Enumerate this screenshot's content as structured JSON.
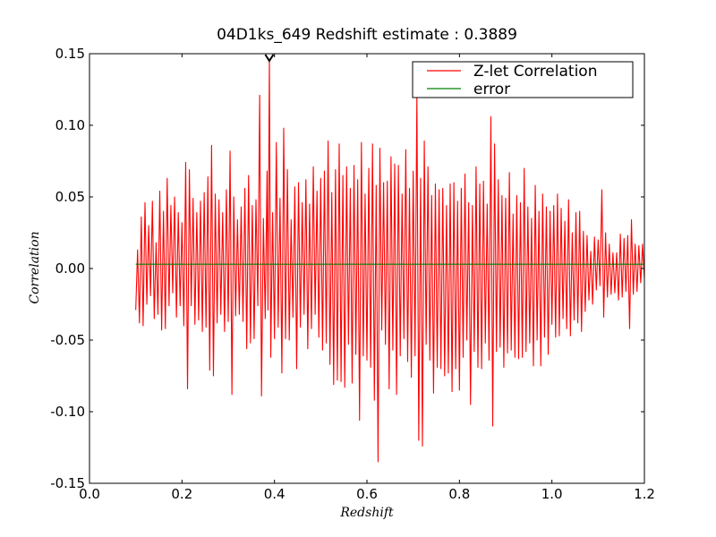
{
  "chart_data": {
    "type": "line",
    "title": "04D1ks_649 Redshift estimate : 0.3889",
    "xlabel": "Redshift",
    "ylabel": "Correlation",
    "xlim": [
      0.0,
      1.2
    ],
    "ylim": [
      -0.15,
      0.15
    ],
    "xticks": [
      0.0,
      0.2,
      0.4,
      0.6,
      0.8,
      1.0,
      1.2
    ],
    "xtick_labels": [
      "0.0",
      "0.2",
      "0.4",
      "0.6",
      "0.8",
      "1.0",
      "1.2"
    ],
    "yticks": [
      -0.15,
      -0.1,
      -0.05,
      0.0,
      0.05,
      0.1,
      0.15
    ],
    "ytick_labels": [
      "-0.15",
      "-0.10",
      "-0.05",
      "0.00",
      "0.05",
      "0.10",
      "0.15"
    ],
    "grid": false,
    "legend_position": "top-right",
    "redshift_estimate": 0.3889,
    "series": [
      {
        "name": "Z-let Correlation",
        "color": "#ff0000",
        "x": [
          0.1,
          0.104,
          0.108,
          0.112,
          0.116,
          0.12,
          0.124,
          0.128,
          0.132,
          0.136,
          0.14,
          0.144,
          0.148,
          0.152,
          0.156,
          0.16,
          0.164,
          0.168,
          0.172,
          0.176,
          0.18,
          0.184,
          0.188,
          0.192,
          0.196,
          0.2,
          0.204,
          0.208,
          0.212,
          0.216,
          0.22,
          0.224,
          0.228,
          0.232,
          0.236,
          0.24,
          0.244,
          0.248,
          0.252,
          0.256,
          0.26,
          0.264,
          0.268,
          0.272,
          0.276,
          0.28,
          0.284,
          0.288,
          0.292,
          0.296,
          0.3,
          0.304,
          0.308,
          0.312,
          0.316,
          0.32,
          0.324,
          0.328,
          0.332,
          0.336,
          0.34,
          0.344,
          0.348,
          0.352,
          0.356,
          0.36,
          0.364,
          0.368,
          0.372,
          0.376,
          0.38,
          0.384,
          0.386,
          0.389,
          0.392,
          0.396,
          0.4,
          0.404,
          0.408,
          0.412,
          0.416,
          0.42,
          0.424,
          0.428,
          0.432,
          0.436,
          0.44,
          0.444,
          0.448,
          0.452,
          0.456,
          0.46,
          0.464,
          0.468,
          0.472,
          0.476,
          0.48,
          0.484,
          0.488,
          0.492,
          0.496,
          0.5,
          0.504,
          0.508,
          0.512,
          0.516,
          0.52,
          0.524,
          0.528,
          0.532,
          0.536,
          0.54,
          0.544,
          0.548,
          0.552,
          0.556,
          0.56,
          0.564,
          0.568,
          0.572,
          0.576,
          0.58,
          0.584,
          0.588,
          0.592,
          0.596,
          0.6,
          0.604,
          0.608,
          0.612,
          0.616,
          0.62,
          0.624,
          0.628,
          0.632,
          0.636,
          0.64,
          0.644,
          0.648,
          0.652,
          0.656,
          0.66,
          0.664,
          0.668,
          0.672,
          0.676,
          0.68,
          0.684,
          0.688,
          0.692,
          0.696,
          0.7,
          0.704,
          0.708,
          0.712,
          0.716,
          0.72,
          0.724,
          0.728,
          0.732,
          0.736,
          0.74,
          0.744,
          0.748,
          0.752,
          0.756,
          0.76,
          0.764,
          0.768,
          0.772,
          0.776,
          0.78,
          0.784,
          0.788,
          0.792,
          0.796,
          0.8,
          0.804,
          0.808,
          0.812,
          0.816,
          0.82,
          0.824,
          0.828,
          0.832,
          0.836,
          0.84,
          0.844,
          0.848,
          0.852,
          0.856,
          0.86,
          0.864,
          0.868,
          0.872,
          0.876,
          0.88,
          0.884,
          0.888,
          0.892,
          0.896,
          0.9,
          0.904,
          0.908,
          0.912,
          0.916,
          0.92,
          0.924,
          0.928,
          0.932,
          0.936,
          0.94,
          0.944,
          0.948,
          0.952,
          0.956,
          0.96,
          0.964,
          0.968,
          0.972,
          0.976,
          0.98,
          0.984,
          0.988,
          0.992,
          0.996,
          1.0,
          1.004,
          1.008,
          1.012,
          1.016,
          1.02,
          1.024,
          1.028,
          1.032,
          1.036,
          1.04,
          1.044,
          1.048,
          1.052,
          1.056,
          1.06,
          1.064,
          1.068,
          1.072,
          1.076,
          1.08,
          1.084,
          1.088,
          1.092,
          1.096,
          1.1,
          1.104,
          1.108,
          1.112,
          1.116,
          1.12,
          1.124,
          1.128,
          1.132,
          1.136,
          1.14,
          1.144,
          1.148,
          1.152,
          1.156,
          1.16,
          1.164,
          1.168,
          1.172,
          1.176,
          1.18,
          1.184,
          1.188,
          1.192,
          1.196,
          1.2
        ],
        "y": [
          -0.029,
          0.013,
          -0.038,
          0.036,
          -0.04,
          0.046,
          -0.025,
          0.03,
          -0.019,
          0.047,
          -0.035,
          0.018,
          -0.032,
          0.054,
          -0.043,
          0.04,
          -0.042,
          0.063,
          -0.026,
          0.044,
          -0.017,
          0.05,
          -0.034,
          0.039,
          -0.026,
          0.032,
          -0.04,
          0.074,
          -0.084,
          0.069,
          -0.026,
          0.049,
          -0.039,
          0.039,
          -0.036,
          0.047,
          -0.044,
          0.053,
          -0.041,
          0.064,
          -0.071,
          0.086,
          -0.075,
          0.052,
          -0.038,
          0.048,
          -0.032,
          0.039,
          -0.044,
          0.055,
          -0.037,
          0.082,
          -0.088,
          0.05,
          -0.033,
          0.034,
          -0.032,
          0.043,
          -0.037,
          0.056,
          -0.056,
          0.065,
          -0.052,
          0.044,
          -0.049,
          0.048,
          -0.026,
          0.121,
          -0.089,
          0.035,
          -0.035,
          0.068,
          -0.029,
          0.146,
          -0.062,
          0.039,
          -0.049,
          0.088,
          -0.041,
          0.049,
          -0.073,
          0.098,
          -0.049,
          0.069,
          -0.05,
          0.034,
          -0.034,
          0.057,
          -0.07,
          0.06,
          -0.041,
          0.046,
          -0.032,
          0.062,
          -0.056,
          0.045,
          -0.042,
          0.071,
          -0.032,
          0.054,
          -0.048,
          0.063,
          -0.057,
          0.068,
          -0.052,
          0.089,
          -0.067,
          0.053,
          -0.081,
          0.069,
          -0.078,
          0.087,
          -0.079,
          0.065,
          -0.083,
          0.071,
          -0.053,
          0.056,
          -0.08,
          0.072,
          -0.06,
          0.062,
          -0.106,
          0.088,
          -0.061,
          0.052,
          -0.064,
          0.07,
          -0.069,
          0.087,
          -0.092,
          0.058,
          -0.135,
          0.084,
          -0.043,
          0.06,
          -0.053,
          0.061,
          -0.084,
          0.078,
          -0.057,
          0.073,
          -0.088,
          0.072,
          -0.061,
          0.052,
          -0.049,
          0.083,
          -0.065,
          0.056,
          -0.076,
          0.068,
          -0.061,
          0.122,
          -0.12,
          0.063,
          -0.124,
          0.089,
          -0.053,
          0.071,
          -0.064,
          0.051,
          -0.087,
          0.059,
          -0.069,
          0.055,
          -0.07,
          0.056,
          -0.075,
          0.044,
          -0.073,
          0.059,
          -0.086,
          0.06,
          -0.07,
          0.047,
          -0.085,
          0.056,
          -0.062,
          0.066,
          -0.05,
          0.046,
          -0.095,
          0.044,
          -0.058,
          0.071,
          -0.069,
          0.059,
          -0.07,
          0.061,
          -0.052,
          0.045,
          -0.064,
          0.106,
          -0.11,
          0.087,
          -0.058,
          0.062,
          -0.055,
          0.051,
          -0.069,
          0.049,
          -0.059,
          0.067,
          -0.057,
          0.038,
          -0.062,
          0.051,
          -0.063,
          0.046,
          -0.062,
          0.07,
          -0.058,
          0.043,
          -0.052,
          0.035,
          -0.068,
          0.058,
          -0.05,
          0.04,
          -0.068,
          0.052,
          -0.048,
          0.043,
          -0.06,
          0.04,
          -0.039,
          0.044,
          -0.048,
          0.052,
          -0.047,
          0.042,
          -0.035,
          0.033,
          -0.042,
          0.048,
          -0.047,
          0.025,
          -0.036,
          0.039,
          -0.038,
          0.04,
          -0.044,
          0.026,
          -0.03,
          0.023,
          -0.022,
          0.012,
          -0.025,
          0.022,
          -0.015,
          0.02,
          -0.012,
          0.055,
          -0.034,
          0.025,
          -0.02,
          0.017,
          -0.018,
          0.011,
          -0.017,
          0.011,
          -0.022,
          0.024,
          -0.02,
          0.021,
          -0.016,
          0.023,
          -0.042,
          0.034,
          -0.018,
          0.017,
          -0.016,
          0.016,
          -0.01,
          0.017,
          -0.007
        ]
      },
      {
        "name": "error",
        "color": "#008000",
        "x": [
          0.1,
          1.2
        ],
        "y": [
          0.003,
          0.003
        ]
      }
    ]
  }
}
